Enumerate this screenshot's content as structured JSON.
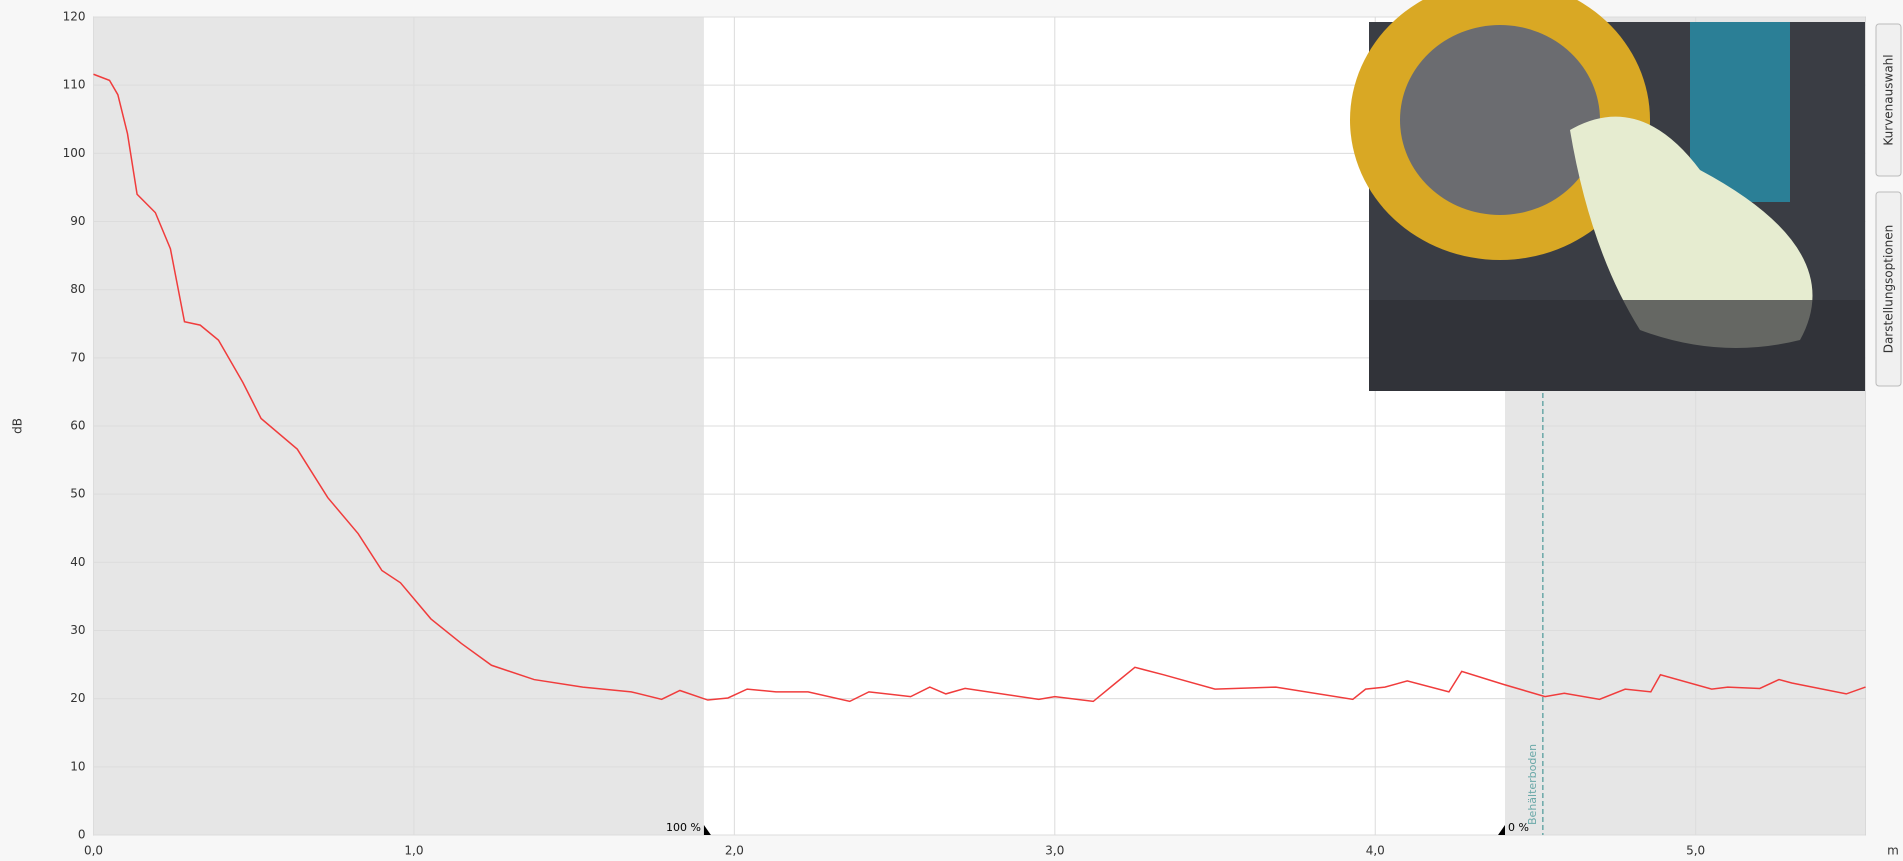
{
  "chart_data": {
    "type": "line",
    "y_label": "dB",
    "x_label": "m",
    "xlim": [
      0,
      5.53
    ],
    "ylim": [
      0,
      120
    ],
    "xticks": [
      {
        "value": 0,
        "label": "0,0"
      },
      {
        "value": 1,
        "label": "1,0"
      },
      {
        "value": 2,
        "label": "2,0"
      },
      {
        "value": 3,
        "label": "3,0"
      },
      {
        "value": 4,
        "label": "4,0"
      },
      {
        "value": 5,
        "label": "5,0"
      }
    ],
    "yticks": [
      0,
      10,
      20,
      30,
      40,
      50,
      60,
      70,
      80,
      90,
      100,
      110,
      120
    ],
    "grid": true,
    "shaded_ranges": [
      [
        0,
        1.905
      ],
      [
        4.405,
        5.53
      ]
    ],
    "markers": [
      {
        "text": "100 %",
        "x": 1.905,
        "side": "left"
      },
      {
        "text": "0 %",
        "x": 4.405,
        "side": "right"
      }
    ],
    "reference_line": {
      "text": "Behälterboden",
      "x": 4.523,
      "color": "#6aa8a8"
    },
    "series": [
      {
        "color": "#f03c3c",
        "x": [
          0,
          0.05,
          0.076,
          0.106,
          0.136,
          0.193,
          0.24,
          0.284,
          0.333,
          0.39,
          0.466,
          0.523,
          0.636,
          0.731,
          0.826,
          0.9,
          0.958,
          1.053,
          1.148,
          1.242,
          1.375,
          1.527,
          1.678,
          1.773,
          1.83,
          1.917,
          1.98,
          2.04,
          2.13,
          2.23,
          2.36,
          2.42,
          2.55,
          2.61,
          2.66,
          2.72,
          2.95,
          3.0,
          3.12,
          3.19,
          3.25,
          3.34,
          3.5,
          3.69,
          3.93,
          3.97,
          4.03,
          4.1,
          4.23,
          4.27,
          4.4,
          4.53,
          4.59,
          4.7,
          4.78,
          4.86,
          4.89,
          5.05,
          5.1,
          5.2,
          5.26,
          5.3,
          5.47,
          5.53
        ],
        "values": [
          111.6,
          110.7,
          108.6,
          102.9,
          94.0,
          91.3,
          86.0,
          75.3,
          74.8,
          72.6,
          66.4,
          61.1,
          56.6,
          49.5,
          44.2,
          38.8,
          37.0,
          31.7,
          28.1,
          24.9,
          22.8,
          21.7,
          21.0,
          19.9,
          21.2,
          19.8,
          20.1,
          21.4,
          21.0,
          21.0,
          19.6,
          21.0,
          20.3,
          21.7,
          20.7,
          21.5,
          19.9,
          20.3,
          19.6,
          22.3,
          24.6,
          23.5,
          21.4,
          21.7,
          19.9,
          21.4,
          21.7,
          22.6,
          21.0,
          24.0,
          22.1,
          20.3,
          20.8,
          19.9,
          21.4,
          21.0,
          23.5,
          21.4,
          21.7,
          21.5,
          22.8,
          22.3,
          20.7,
          21.7
        ]
      }
    ]
  },
  "side_tabs": [
    "Kurvenauswahl",
    "Darstellungsoptionen"
  ]
}
